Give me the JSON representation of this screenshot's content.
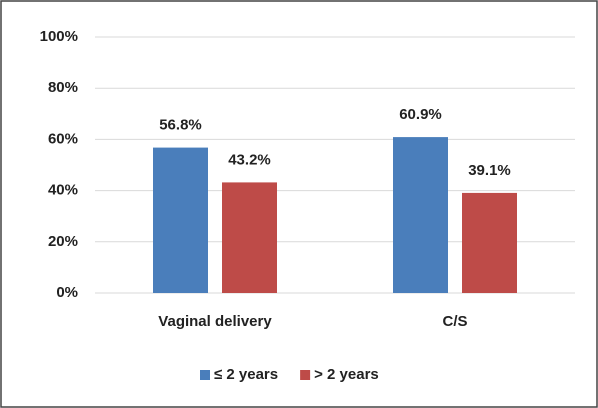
{
  "chart_data": {
    "type": "bar",
    "categories": [
      "Vaginal delivery",
      "C/S"
    ],
    "series": [
      {
        "name": "≤ 2 years",
        "color": "#4a7ebb",
        "values": [
          56.8,
          60.9
        ],
        "value_labels": [
          "56.8%",
          "60.9%"
        ]
      },
      {
        "name": "> 2 years",
        "color": "#be4b48",
        "values": [
          43.2,
          39.1
        ],
        "value_labels": [
          "43.2%",
          "39.1%"
        ]
      }
    ],
    "ylim": [
      0,
      100
    ],
    "yticks": [
      {
        "value": 0,
        "label": "0%"
      },
      {
        "value": 20,
        "label": "20%"
      },
      {
        "value": 40,
        "label": "40%"
      },
      {
        "value": 60,
        "label": "60%"
      },
      {
        "value": 80,
        "label": "80%"
      },
      {
        "value": 100,
        "label": "100%"
      }
    ],
    "grid": true,
    "legend": "bottom"
  }
}
